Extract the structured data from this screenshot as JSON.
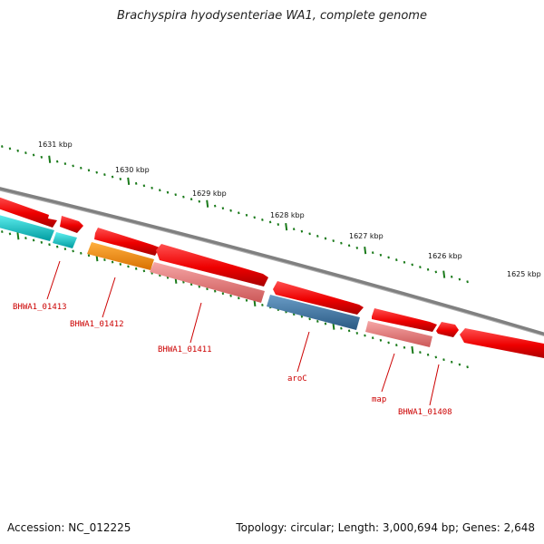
{
  "title": "Brachyspira hyodysenteriae WA1, complete genome",
  "footer": {
    "accession": "Accession: NC_012225",
    "summary": "Topology: circular; Length: 3,000,694 bp; Genes: 2,648"
  },
  "ticks": [
    "1631 kbp",
    "1630 kbp",
    "1629 kbp",
    "1628 kbp",
    "1627 kbp",
    "1626 kbp",
    "1625 kbp"
  ],
  "gene_labels": [
    "BHWA1_01413",
    "BHWA1_01412",
    "BHWA1_01411",
    "aroC",
    "map",
    "BHWA1_01408"
  ],
  "colors": {
    "red": "#ee0000",
    "cyan": "#00c8cc",
    "orange": "#ff8c00",
    "pink": "#ec7a7a",
    "blue": "#3e78a6",
    "backbone": "#808080",
    "tick": "#1a7a1a",
    "label": "#cc0000"
  }
}
